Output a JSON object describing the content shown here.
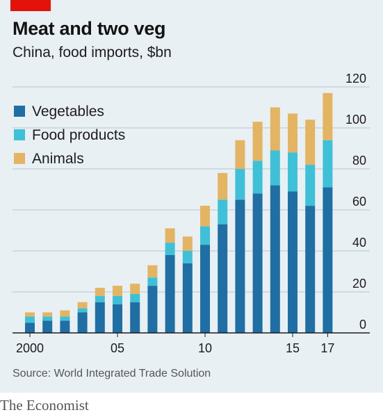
{
  "header": {
    "title": "Meat and two veg",
    "subtitle": "China, food imports, $bn"
  },
  "source": "Source: World Integrated Trade Solution",
  "brand": "The Economist",
  "colors": {
    "background": "#e9f0f4",
    "accent_red": "#e3120b",
    "vegetables": "#1f6fa5",
    "food_products": "#3ec0d8",
    "animals": "#e3b461"
  },
  "chart_data": {
    "type": "bar",
    "stacked": true,
    "categories": [
      "2000",
      "2001",
      "2002",
      "2003",
      "2004",
      "2005",
      "2006",
      "2007",
      "2008",
      "2009",
      "2010",
      "2011",
      "2012",
      "2013",
      "2014",
      "2015",
      "2016",
      "2017"
    ],
    "x_tick_labels": [
      {
        "category": "2000",
        "label": "2000"
      },
      {
        "category": "2005",
        "label": "05"
      },
      {
        "category": "2010",
        "label": "10"
      },
      {
        "category": "2015",
        "label": "15"
      },
      {
        "category": "2017",
        "label": "17"
      }
    ],
    "series": [
      {
        "name": "Vegetables",
        "color": "#1f6fa5",
        "values": [
          5,
          6,
          6,
          10,
          15,
          14,
          15,
          23,
          38,
          34,
          43,
          53,
          65,
          68,
          72,
          69,
          62,
          71
        ]
      },
      {
        "name": "Food products",
        "color": "#3ec0d8",
        "values": [
          3,
          2,
          2,
          2,
          3,
          4,
          4,
          4,
          6,
          6,
          9,
          12,
          15,
          16,
          17,
          19,
          20,
          23
        ]
      },
      {
        "name": "Animals",
        "color": "#e3b461",
        "values": [
          2,
          2,
          3,
          3,
          4,
          5,
          5,
          6,
          7,
          7,
          10,
          13,
          14,
          19,
          21,
          19,
          22,
          23
        ]
      }
    ],
    "ylim": [
      0,
      120
    ],
    "yticks": [
      0,
      20,
      40,
      60,
      80,
      100,
      120
    ],
    "y_axis_side": "right",
    "grid": true,
    "legend_position": "top-left"
  }
}
